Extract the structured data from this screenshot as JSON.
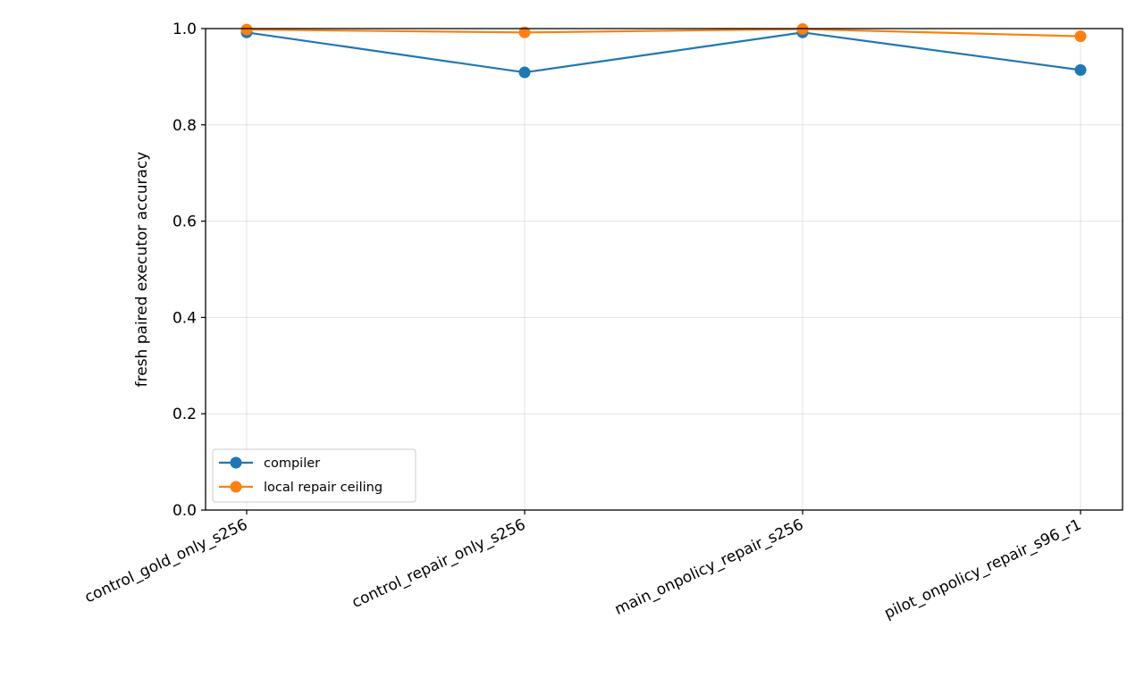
{
  "chart_data": {
    "type": "line",
    "categories": [
      "control_gold_only_s256",
      "control_repair_only_s256",
      "main_onpolicy_repair_s256",
      "pilot_onpolicy_repair_s96_r1"
    ],
    "series": [
      {
        "name": "compiler",
        "values": [
          0.992,
          0.909,
          0.992,
          0.914
        ],
        "color": "#1f77b4"
      },
      {
        "name": "local repair ceiling",
        "values": [
          0.998,
          0.992,
          0.999,
          0.984
        ],
        "color": "#ff7f0e"
      }
    ],
    "title": "",
    "xlabel": "",
    "ylabel": "fresh paired executor accuracy",
    "ylim": [
      0.0,
      1.0
    ],
    "yticks": [
      "0.0",
      "0.2",
      "0.4",
      "0.6",
      "0.8",
      "1.0"
    ],
    "grid": true,
    "legend_position": "lower-left",
    "x_tick_rotation": "25 degrees"
  }
}
